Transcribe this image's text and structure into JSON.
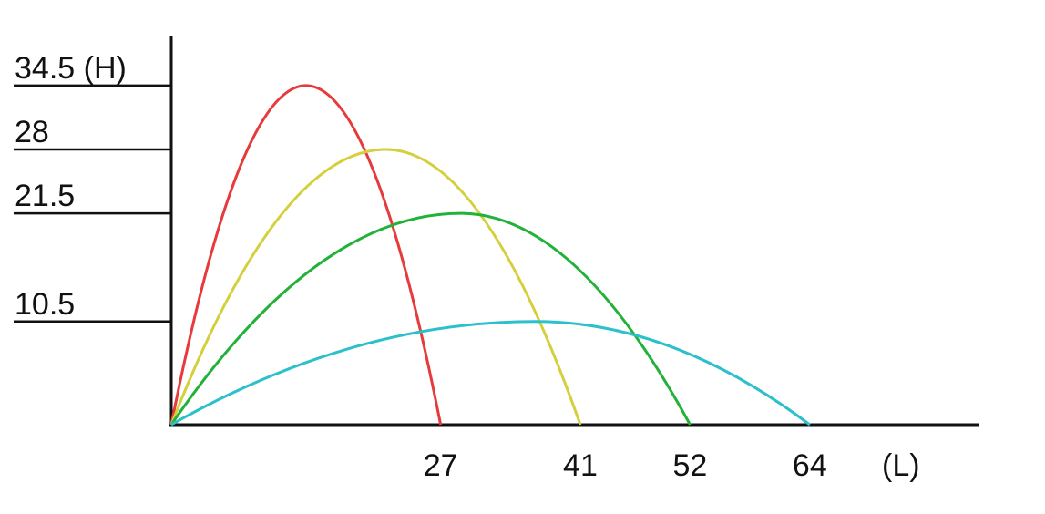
{
  "chart_data": {
    "type": "trajectory",
    "xlabel": "(L)",
    "xlim": [
      0,
      81
    ],
    "ylim": [
      0,
      39.5
    ],
    "xticks": [
      27,
      41,
      52,
      64
    ],
    "yticks": [
      {
        "value": 34.5,
        "label": "34.5 (H)"
      },
      28,
      21.5,
      10.5
    ],
    "series": [
      {
        "color": "#e63a3c",
        "x": [
          0,
          13.5,
          27
        ],
        "values": [
          0,
          34.5,
          0
        ]
      },
      {
        "color": "#d4cf3c",
        "x": [
          0,
          21.5,
          41
        ],
        "values": [
          0,
          28,
          0
        ]
      },
      {
        "color": "#22b23a",
        "x": [
          0,
          29,
          52
        ],
        "values": [
          0,
          21.5,
          0
        ]
      },
      {
        "color": "#2cbfcc",
        "x": [
          0,
          36.5,
          64
        ],
        "values": [
          0,
          10.5,
          0
        ]
      }
    ]
  }
}
